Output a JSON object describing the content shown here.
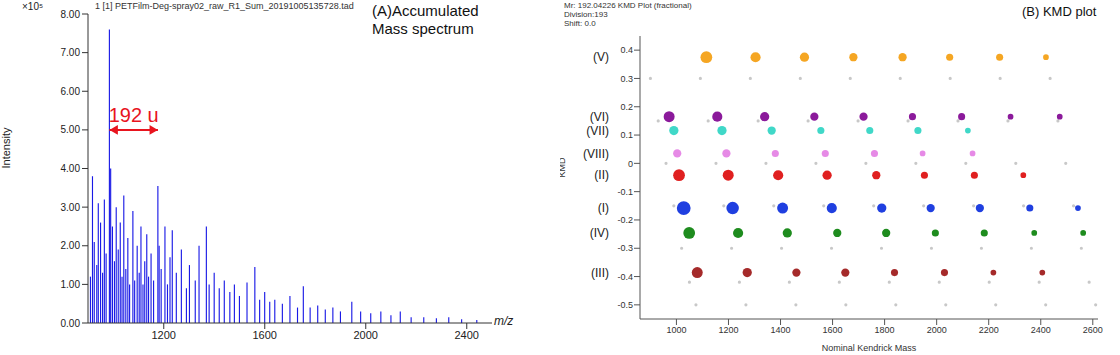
{
  "chart_data": [
    {
      "type": "bar",
      "title": "1 [1] PETFilm-Deg-spray02_raw_R1_Sum_20191005135728.tad",
      "panel_label": [
        "(A)Accumulated",
        "Mass spectrum"
      ],
      "x_label": "m/z",
      "y_label": "Intensity",
      "y_scale_label": "×10⁵",
      "color": "#1a1ae6",
      "x": [
        910,
        918,
        925,
        935,
        941,
        950,
        958,
        965,
        972,
        985,
        990,
        997,
        1005,
        1012,
        1020,
        1028,
        1035,
        1042,
        1050,
        1058,
        1065,
        1078,
        1085,
        1095,
        1103,
        1110,
        1118,
        1125,
        1133,
        1140,
        1150,
        1160,
        1177,
        1182,
        1190,
        1205,
        1215,
        1225,
        1234,
        1250,
        1270,
        1290,
        1302,
        1325,
        1340,
        1369,
        1380,
        1400,
        1420,
        1440,
        1462,
        1480,
        1500,
        1530,
        1561,
        1580,
        1600,
        1620,
        1640,
        1670,
        1700,
        1730,
        1753,
        1780,
        1810,
        1840,
        1870,
        1900,
        1945,
        1980,
        2020,
        2060,
        2100,
        2137,
        2180,
        2230,
        2280,
        2329,
        2380,
        2440
      ],
      "values": [
        1.2,
        3.8,
        2.1,
        1.5,
        3.1,
        2.6,
        1.3,
        3.2,
        1.8,
        7.6,
        4.0,
        2.5,
        1.6,
        3.0,
        1.9,
        2.6,
        1.2,
        3.3,
        1.4,
        2.2,
        1.0,
        2.9,
        1.1,
        2.0,
        1.3,
        2.5,
        1.0,
        1.6,
        2.3,
        1.2,
        1.8,
        1.1,
        3.55,
        2.0,
        1.4,
        2.5,
        1.0,
        1.7,
        2.4,
        1.3,
        1.9,
        0.9,
        1.5,
        1.1,
        2.0,
        2.5,
        1.0,
        1.3,
        0.9,
        1.1,
        0.8,
        1.0,
        0.7,
        1.05,
        1.45,
        0.6,
        0.8,
        0.55,
        0.6,
        0.5,
        0.7,
        0.4,
        0.95,
        0.4,
        0.45,
        0.35,
        0.4,
        0.3,
        0.55,
        0.3,
        0.25,
        0.3,
        0.2,
        0.3,
        0.15,
        0.15,
        0.12,
        0.15,
        0.1,
        0.08
      ],
      "xlim": [
        900,
        2500
      ],
      "xticks": [
        1200,
        1600,
        2000,
        2400
      ],
      "ylim": [
        0,
        8
      ],
      "yticks": [
        {
          "value": 0,
          "label": "0.00"
        },
        {
          "value": 1,
          "label": "1.00"
        },
        {
          "value": 2,
          "label": "2.00"
        },
        {
          "value": 3,
          "label": "3.00"
        },
        {
          "value": 4,
          "label": "4.00"
        },
        {
          "value": 5,
          "label": "5.00"
        },
        {
          "value": 6,
          "label": "6.00"
        },
        {
          "value": 7,
          "label": "7.00"
        },
        {
          "value": 8,
          "label": "8.00"
        }
      ],
      "annotation": {
        "text": "192 u",
        "color": "#e8141e",
        "x1": 985,
        "x2": 1177,
        "y": 5.0
      }
    },
    {
      "type": "scatter",
      "title": "(B) KMD plot",
      "header": [
        "Mr: 192.04226 KMD Plot (fractional)",
        "Division:193",
        "Shift: 0.0"
      ],
      "x_label": "Nominal Kendrick Mass",
      "y_label": "KMD",
      "xlim": [
        860,
        2620
      ],
      "xticks": [
        1000,
        1200,
        1400,
        1600,
        1800,
        2000,
        2200,
        2400,
        2600
      ],
      "ylim": [
        -0.55,
        0.45
      ],
      "yticks": [
        -0.5,
        -0.4,
        -0.3,
        -0.2,
        -0.1,
        0,
        0.1,
        0.2,
        0.3,
        0.4
      ],
      "series": [
        {
          "color": "#c8c8c8",
          "x": [
            900,
            930,
            960,
            990,
            1020,
            1050,
            1075,
            1092,
            1122,
            1152,
            1182,
            1212,
            1242,
            1267,
            1284,
            1314,
            1344,
            1374,
            1404,
            1434,
            1459,
            1476,
            1506,
            1536,
            1566,
            1596,
            1626,
            1651,
            1668,
            1698,
            1728,
            1758,
            1788,
            1818,
            1843,
            1860,
            1890,
            1920,
            1950,
            1980,
            2010,
            2035,
            2052,
            2082,
            2112,
            2142,
            2172,
            2202,
            2227,
            2244,
            2274,
            2304,
            2334,
            2364,
            2394,
            2419,
            2436,
            2466,
            2496,
            2526,
            2556,
            2586,
            2611
          ],
          "values": [
            0.3,
            0.15,
            0,
            -0.15,
            -0.3,
            -0.42,
            -0.5,
            0.3,
            0.15,
            0,
            -0.15,
            -0.3,
            -0.42,
            -0.5,
            0.3,
            0.15,
            0,
            -0.15,
            -0.3,
            -0.42,
            -0.5,
            0.3,
            0.15,
            0,
            -0.15,
            -0.3,
            -0.42,
            -0.5,
            0.3,
            0.15,
            0,
            -0.15,
            -0.3,
            -0.42,
            -0.5,
            0.3,
            0.15,
            0,
            -0.15,
            -0.3,
            -0.42,
            -0.5,
            0.3,
            0.15,
            0,
            -0.15,
            -0.3,
            -0.42,
            -0.5,
            0.3,
            0.15,
            0,
            -0.15,
            -0.3,
            -0.42,
            -0.5,
            0.3,
            0.15,
            0,
            -0.15,
            -0.3,
            -0.42,
            -0.5
          ]
        },
        {
          "name": "(V)",
          "color": "#f5a623",
          "x": [
            1115,
            1304,
            1492,
            1680,
            1869,
            2050,
            2242,
            2420
          ],
          "values": [
            0.375,
            0.375,
            0.375,
            0.375,
            0.375,
            0.375,
            0.375,
            0.375
          ],
          "sizes": [
            7,
            5,
            4,
            3,
            3,
            2,
            2,
            1
          ]
        },
        {
          "name": "(VI)",
          "color": "#8b1a9b",
          "x": [
            972,
            1157,
            1339,
            1530,
            1719,
            1907,
            2096,
            2284,
            2473
          ],
          "values": [
            0.165,
            0.165,
            0.165,
            0.165,
            0.165,
            0.165,
            0.165,
            0.165,
            0.165
          ],
          "sizes": [
            6,
            5,
            4,
            3,
            3,
            2,
            2,
            1,
            1
          ]
        },
        {
          "name": "(VII)",
          "color": "#40d8c8",
          "x": [
            990,
            1175,
            1366,
            1555,
            1743,
            1928,
            2120
          ],
          "values": [
            0.116,
            0.116,
            0.116,
            0.116,
            0.116,
            0.116,
            0.116
          ],
          "sizes": [
            4,
            4,
            3,
            2,
            2,
            2,
            1
          ]
        },
        {
          "name": "(VIII)",
          "color": "#e68ae6",
          "x": [
            1003,
            1192,
            1380,
            1572,
            1761,
            1946,
            2138
          ],
          "values": [
            0.035,
            0.035,
            0.035,
            0.035,
            0.035,
            0.035,
            0.035
          ],
          "sizes": [
            3,
            3,
            2,
            2,
            2,
            1,
            1
          ]
        },
        {
          "name": "(II)",
          "color": "#e02020",
          "x": [
            1010,
            1199,
            1391,
            1579,
            1768,
            1953,
            2145,
            2333
          ],
          "values": [
            -0.042,
            -0.042,
            -0.042,
            -0.042,
            -0.042,
            -0.042,
            -0.042,
            -0.042
          ],
          "sizes": [
            7,
            6,
            5,
            4,
            3,
            2,
            2,
            1
          ]
        },
        {
          "name": "(I)",
          "color": "#1f3fe0",
          "x": [
            1028,
            1216,
            1408,
            1597,
            1789,
            1977,
            2166,
            2358,
            2543
          ],
          "values": [
            -0.158,
            -0.158,
            -0.158,
            -0.158,
            -0.158,
            -0.158,
            -0.158,
            -0.158,
            -0.158
          ],
          "sizes": [
            10,
            8,
            6,
            5,
            4,
            3,
            3,
            2,
            1
          ]
        },
        {
          "name": "(IV)",
          "color": "#1e8c1e",
          "x": [
            1049,
            1237,
            1426,
            1618,
            1806,
            1995,
            2183,
            2375,
            2563
          ],
          "values": [
            -0.246,
            -0.246,
            -0.246,
            -0.246,
            -0.246,
            -0.246,
            -0.246,
            -0.246,
            -0.246
          ],
          "sizes": [
            7,
            5,
            4,
            3,
            3,
            2,
            2,
            1,
            1
          ]
        },
        {
          "name": "(III)",
          "color": "#a52a2a",
          "x": [
            1080,
            1272,
            1461,
            1649,
            1838,
            2030,
            2218,
            2406
          ],
          "values": [
            -0.386,
            -0.386,
            -0.386,
            -0.386,
            -0.386,
            -0.386,
            -0.386,
            -0.386
          ],
          "sizes": [
            6,
            4,
            3,
            3,
            2,
            2,
            1,
            1
          ]
        }
      ]
    }
  ]
}
